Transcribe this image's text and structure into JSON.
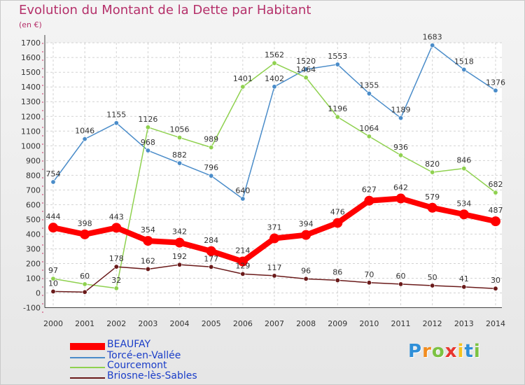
{
  "title": "Evolution du Montant de la Dette par Habitant",
  "unit_label": "(en €)",
  "logo_text": "Proxiti",
  "chart_data": {
    "type": "line",
    "title": "Evolution du Montant de la Dette par Habitant",
    "ylabel": "(en €)",
    "xlabel": "",
    "ylim": [
      -100,
      1700
    ],
    "yticks": [
      -100,
      0,
      100,
      200,
      300,
      400,
      500,
      600,
      700,
      800,
      900,
      1000,
      1100,
      1200,
      1300,
      1400,
      1500,
      1600,
      1700
    ],
    "categories": [
      "2000",
      "2001",
      "2002",
      "2003",
      "2004",
      "2005",
      "2006",
      "2007",
      "2008",
      "2009",
      "2010",
      "2011",
      "2012",
      "2013",
      "2014"
    ],
    "grid": true,
    "legend_position": "bottom-left",
    "series": [
      {
        "name": "Torcé-en-Vallée",
        "color": "#4a8cc9",
        "values": [
          754,
          1046,
          1155,
          968,
          882,
          796,
          640,
          1402,
          1520,
          1553,
          1355,
          1189,
          1683,
          1518,
          1376
        ]
      },
      {
        "name": "Courcemont",
        "color": "#8fd14f",
        "values": [
          97,
          60,
          32,
          1126,
          1056,
          989,
          1401,
          1562,
          1464,
          1196,
          1064,
          936,
          820,
          846,
          682
        ]
      },
      {
        "name": "Briosne-lès-Sables",
        "color": "#6a1a1a",
        "values": [
          10,
          6,
          178,
          162,
          192,
          177,
          129,
          117,
          96,
          86,
          70,
          60,
          50,
          41,
          30
        ]
      },
      {
        "name": "BEAUFAY",
        "color": "#ff0000",
        "values": [
          444,
          398,
          443,
          354,
          342,
          284,
          214,
          371,
          394,
          476,
          627,
          642,
          579,
          534,
          487
        ]
      }
    ],
    "point_labels": {
      "Torcé-en-Vallée": [
        "754",
        "1046",
        "1155",
        "968",
        "882",
        "796",
        "640",
        "1402",
        "1520",
        "1553",
        "1355",
        "1189",
        "1683",
        "1518",
        "1376"
      ],
      "Courcemont": [
        "97",
        "60",
        "32",
        "1126",
        "1056",
        "989",
        "1401",
        "1562",
        "1464",
        "1196",
        "1064",
        "936",
        "820",
        "846",
        "682"
      ],
      "Briosne-lès-Sables": [
        "10",
        "",
        "178",
        "162",
        "192",
        "177",
        "129",
        "117",
        "96",
        "86",
        "70",
        "60",
        "50",
        "41",
        "30"
      ],
      "BEAUFAY": [
        "444",
        "398",
        "443",
        "354",
        "342",
        "284",
        "214",
        "371",
        "394",
        "476",
        "627",
        "642",
        "579",
        "534",
        "487"
      ]
    },
    "legend": [
      "BEAUFAY",
      "Torcé-en-Vallée",
      "Courcemont",
      "Briosne-lès-Sables"
    ]
  }
}
